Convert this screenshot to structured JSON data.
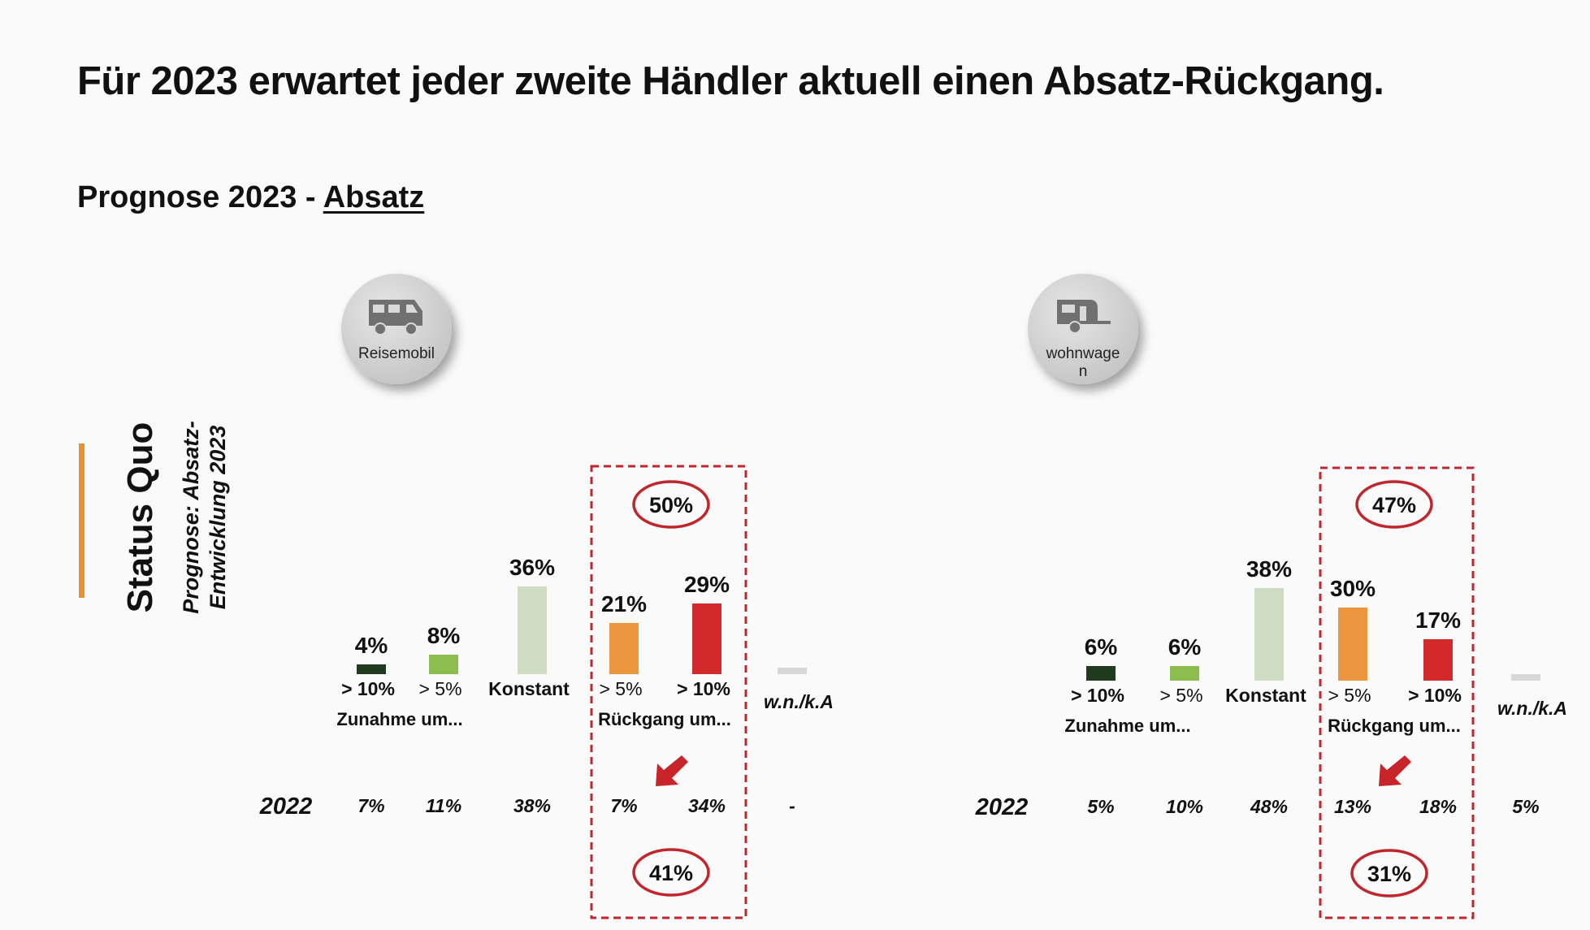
{
  "title": "Für 2023 erwartet jeder zweite Händler aktuell einen Absatz-Rückgang.",
  "subtitle": {
    "prefix": "Prognose 2023 - ",
    "underlined": "Absatz"
  },
  "side": {
    "status": "Status Quo",
    "prognose_line1": "Prognose: Absatz-",
    "prognose_line2": "Entwicklung 2023"
  },
  "colors": {
    "accent": "#e8912e",
    "dark_green": "#1f3a1f",
    "light_green": "#8cbd4e",
    "pale": "#cfdcc4",
    "orange": "#ee963e",
    "red": "#d22a2a",
    "grey": "#d8d8d8",
    "frame": "#c0262c"
  },
  "chart_data": [
    {
      "type": "bar",
      "icon": "motorhome-icon",
      "icon_label": "Reisemobil",
      "categories": [
        "> 10%",
        "> 5%",
        "Konstant",
        "> 5%",
        "> 10%",
        "w.n./k.A"
      ],
      "group_labels": [
        "Zunahme um...",
        "Rückgang um..."
      ],
      "values": [
        4,
        8,
        36,
        21,
        29,
        0
      ],
      "value_labels": [
        "4%",
        "8%",
        "36%",
        "21%",
        "29%",
        ""
      ],
      "row_2022_label": "2022",
      "values_2022": [
        "7%",
        "11%",
        "38%",
        "7%",
        "34%",
        "-"
      ],
      "rueckgang_total_2023": "50%",
      "rueckgang_total_2022": "41%",
      "ylim": [
        0,
        40
      ]
    },
    {
      "type": "bar",
      "icon": "caravan-icon",
      "icon_label": "wohnwage n",
      "categories": [
        "> 10%",
        "> 5%",
        "Konstant",
        "> 5%",
        "> 10%",
        "w.n./k.A"
      ],
      "group_labels": [
        "Zunahme um...",
        "Rückgang um..."
      ],
      "values": [
        6,
        6,
        38,
        30,
        17,
        0
      ],
      "value_labels": [
        "6%",
        "6%",
        "38%",
        "30%",
        "17%",
        ""
      ],
      "row_2022_label": "2022",
      "values_2022": [
        "5%",
        "10%",
        "48%",
        "13%",
        "18%",
        "5%"
      ],
      "rueckgang_total_2023": "47%",
      "rueckgang_total_2022": "31%",
      "ylim": [
        0,
        40
      ]
    }
  ]
}
